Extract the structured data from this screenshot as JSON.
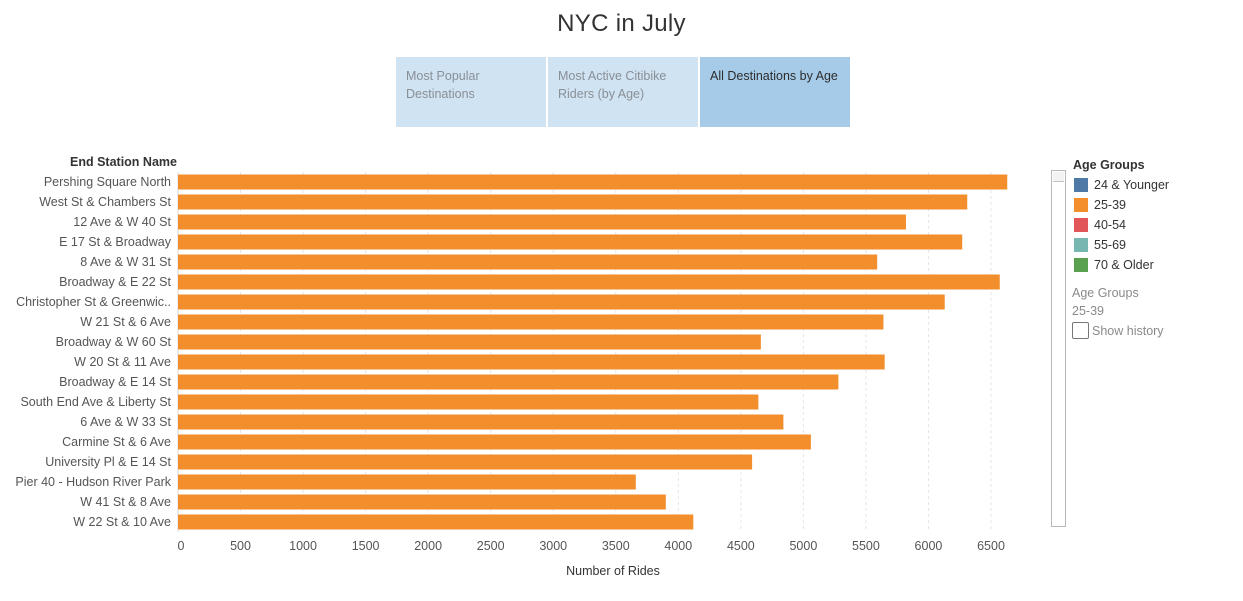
{
  "title": "NYC in July",
  "tabs": [
    {
      "label": "Most Popular Destinations",
      "active": false
    },
    {
      "label": "Most Active Citibike Riders (by Age)",
      "active": false
    },
    {
      "label": "All Destinations by Age",
      "active": true
    }
  ],
  "legend": {
    "title": "Age Groups",
    "items": [
      {
        "label": "24 & Younger",
        "color": "#4e79a7"
      },
      {
        "label": "25-39",
        "color": "#f28e2b"
      },
      {
        "label": "40-54",
        "color": "#e15759"
      },
      {
        "label": "55-69",
        "color": "#76b7b2"
      },
      {
        "label": "70 & Older",
        "color": "#59a14f"
      }
    ],
    "highlight_title": "Age Groups",
    "highlight_value": "25-39",
    "show_history_label": "Show history"
  },
  "chart_data": {
    "type": "bar",
    "orientation": "horizontal",
    "row_header": "End Station Name",
    "xlabel": "Number of Rides",
    "xlim": [
      0,
      6900
    ],
    "xticks": [
      0,
      500,
      1000,
      1500,
      2000,
      2500,
      3000,
      3500,
      4000,
      4500,
      5000,
      5500,
      6000,
      6500
    ],
    "grid": true,
    "categories": [
      "Pershing Square North",
      "West St & Chambers St",
      "12 Ave & W 40 St",
      "E 17 St & Broadway",
      "8 Ave & W 31 St",
      "Broadway & E 22 St",
      "Christopher St & Greenwic..",
      "W 21 St & 6 Ave",
      "Broadway & W 60 St",
      "W 20 St & 11 Ave",
      "Broadway & E 14 St",
      "South End Ave & Liberty St",
      "6 Ave & W 33 St",
      "Carmine St & 6 Ave",
      "University Pl & E 14 St",
      "Pier 40 - Hudson River Park",
      "W 41 St & 8 Ave",
      "W 22 St & 10 Ave"
    ],
    "series": [
      {
        "name": "25-39",
        "color": "#f28e2b",
        "values": [
          6630,
          6310,
          5820,
          6270,
          5590,
          6570,
          6130,
          5640,
          4660,
          5650,
          5280,
          4640,
          4840,
          5060,
          4590,
          3660,
          3900,
          4120
        ]
      }
    ]
  }
}
